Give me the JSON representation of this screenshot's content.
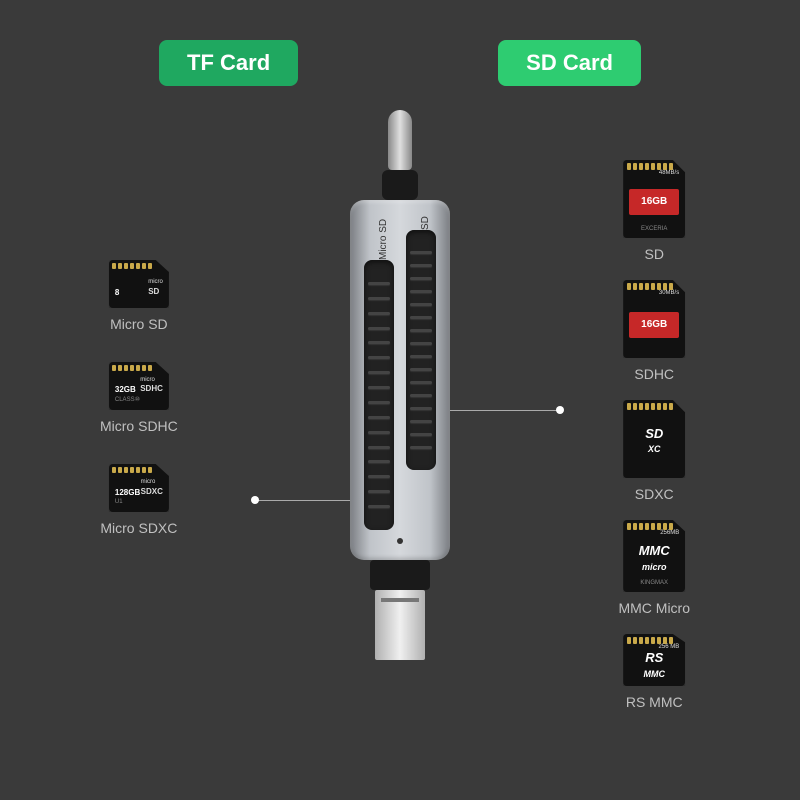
{
  "headers": {
    "left": "TF Card",
    "right": "SD Card"
  },
  "colors": {
    "background": "#3a3a3a",
    "badge_left": "#1fa860",
    "badge_right": "#2ecc71",
    "label_text": "#c0c0c0",
    "device_body": "#c0c4c9",
    "slot": "#222222",
    "sd_red_accent": "#c62828"
  },
  "device": {
    "slot_left_label": "Micro SD",
    "slot_right_label": "SD"
  },
  "left_cards": [
    {
      "label": "Micro SD",
      "capacity": "8",
      "unit": "GB",
      "logo1": "micro",
      "logo2": "SD"
    },
    {
      "label": "Micro SDHC",
      "capacity": "32GB",
      "unit": "",
      "logo1": "micro",
      "logo2": "SDHC",
      "class": "CLASS⑩"
    },
    {
      "label": "Micro SDXC",
      "capacity": "128GB",
      "unit": "",
      "logo1": "micro",
      "logo2": "SDXC",
      "uhs": "U1"
    }
  ],
  "right_cards": [
    {
      "label": "SD",
      "style": "red",
      "top_text": "48MB/s",
      "main": "16GB",
      "brand": "EXCERIA"
    },
    {
      "label": "SDHC",
      "style": "red",
      "top_text": "30MB/s",
      "main": "16GB",
      "brand": ""
    },
    {
      "label": "SDXC",
      "style": "black",
      "logo": "SD XC"
    },
    {
      "label": "MMC Micro",
      "style": "black",
      "top_text": "256MB",
      "logo": "MMC micro",
      "brand": "KINGMAX"
    },
    {
      "label": "RS MMC",
      "style": "black",
      "top_text": "256 MB",
      "logo": "RS MMC"
    }
  ]
}
